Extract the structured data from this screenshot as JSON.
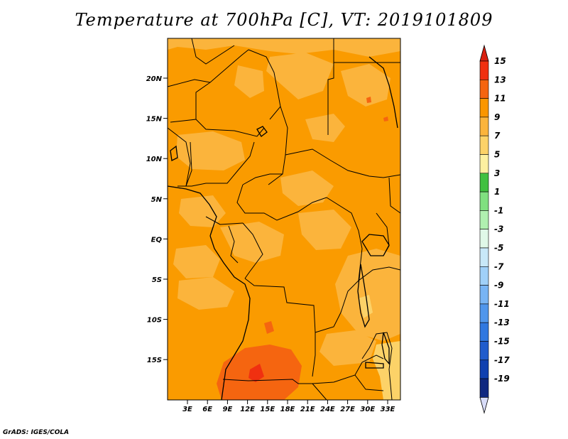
{
  "title": "Temperature at 700hPa [C], VT: 2019101809",
  "footer": "GrADS: IGES/COLA",
  "map": {
    "lat_ticks": [
      "20N",
      "15N",
      "10N",
      "5N",
      "EQ",
      "5S",
      "10S",
      "15S"
    ],
    "lon_ticks": [
      "3E",
      "6E",
      "9E",
      "12E",
      "15E",
      "18E",
      "21E",
      "24E",
      "27E",
      "30E",
      "33E"
    ]
  },
  "colorbar": {
    "labels": [
      "15",
      "13",
      "11",
      "9",
      "7",
      "5",
      "3",
      "1",
      "-1",
      "-3",
      "-5",
      "-7",
      "-9",
      "-11",
      "-13",
      "-15",
      "-17",
      "-19"
    ],
    "colors": [
      "#f03010",
      "#f56510",
      "#fa9600",
      "#fbb43c",
      "#fcd268",
      "#fdf0a0",
      "#40c040",
      "#80e080",
      "#b0f0b0",
      "#e0f8e8",
      "#c8e8f8",
      "#a0d0f8",
      "#78b4f4",
      "#5096ec",
      "#3078e0",
      "#205ccc",
      "#1040b0",
      "#102880"
    ],
    "top_arrow_color": "#d82010",
    "bottom_arrow_color": "#d8dcf8"
  },
  "palette": {
    "main": "#fa9b00",
    "light": "#fbb43c",
    "pale": "#fcd268",
    "warm": "#f56510",
    "hot": "#f03010",
    "border": "#000000"
  }
}
